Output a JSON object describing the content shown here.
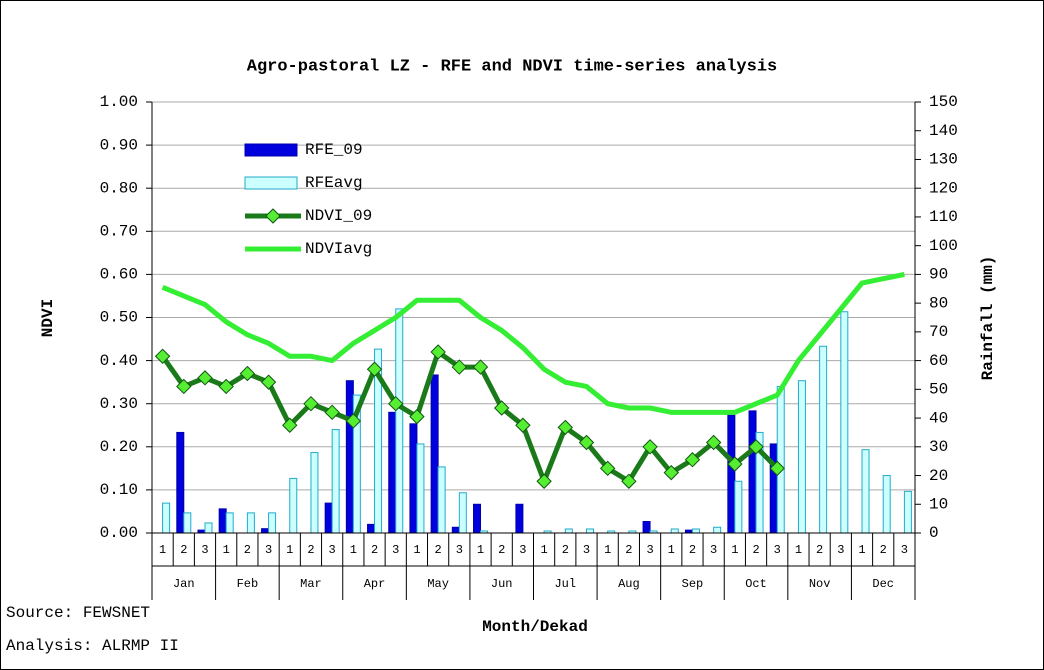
{
  "chart_data": {
    "type": "combo",
    "title": "Agro-pastoral LZ - RFE and NDVI time-series analysis",
    "y_label": "NDVI",
    "y2_label": "Rainfall (mm)",
    "x_label": "Month/Dekad",
    "annotations": [
      "Source: FEWSNET",
      "Analysis: ALRMP II"
    ],
    "categories": [
      "1",
      "2",
      "3",
      "1",
      "2",
      "3",
      "1",
      "2",
      "3",
      "1",
      "2",
      "3",
      "1",
      "2",
      "3",
      "1",
      "2",
      "3",
      "1",
      "2",
      "3",
      "1",
      "2",
      "3",
      "1",
      "2",
      "3",
      "1",
      "2",
      "3",
      "1",
      "2",
      "3",
      "1",
      "2",
      "3"
    ],
    "months": [
      "Jan",
      "Feb",
      "Mar",
      "Apr",
      "May",
      "Jun",
      "Jul",
      "Aug",
      "Sep",
      "Oct",
      "Nov",
      "Dec"
    ],
    "ylim": [
      0,
      1
    ],
    "yticks": [
      {
        "value": 0,
        "label": "0.00"
      },
      {
        "value": 0.1,
        "label": "0.10"
      },
      {
        "value": 0.2,
        "label": "0.20"
      },
      {
        "value": 0.3,
        "label": "0.30"
      },
      {
        "value": 0.4,
        "label": "0.40"
      },
      {
        "value": 0.5,
        "label": "0.50"
      },
      {
        "value": 0.6,
        "label": "0.60"
      },
      {
        "value": 0.7,
        "label": "0.70"
      },
      {
        "value": 0.8,
        "label": "0.80"
      },
      {
        "value": 0.9,
        "label": "0.90"
      },
      {
        "value": 1,
        "label": "1.00"
      }
    ],
    "y2lim": [
      0,
      150
    ],
    "y2ticks": [
      0,
      10,
      20,
      30,
      40,
      50,
      60,
      70,
      80,
      90,
      100,
      110,
      120,
      130,
      140,
      150
    ],
    "grid": true,
    "legend": "upper left",
    "series": [
      {
        "name": "RFE_09",
        "type": "bar",
        "axis": "y2",
        "color": "#0000dd",
        "values": [
          0,
          35,
          1,
          8.4,
          0,
          1.5,
          0,
          0,
          10.4,
          53,
          3,
          42,
          38,
          55,
          2,
          10,
          0,
          10,
          0,
          0,
          0,
          0,
          0,
          4,
          0,
          1,
          0,
          41,
          42.5,
          31,
          0,
          0,
          0,
          0,
          0,
          0
        ]
      },
      {
        "name": "RFEavg",
        "type": "bar",
        "axis": "y2",
        "color": "#ccffff",
        "values": [
          10.4,
          7,
          3.5,
          7,
          7,
          7,
          19,
          28,
          36,
          48,
          64,
          78,
          31,
          23,
          14,
          0.7,
          0,
          0,
          0.7,
          1.4,
          1.4,
          0.7,
          0.7,
          0.7,
          1.4,
          1.4,
          2,
          18,
          35,
          51,
          53,
          65,
          77,
          29,
          20,
          14.5
        ]
      },
      {
        "name": "NDVI_09",
        "type": "line",
        "color": "#1a7a1a",
        "values": [
          0.41,
          0.34,
          0.36,
          0.34,
          0.37,
          0.35,
          0.25,
          0.3,
          0.28,
          0.26,
          0.38,
          0.3,
          0.27,
          0.42,
          0.385,
          0.385,
          0.29,
          0.25,
          0.12,
          0.245,
          0.21,
          0.15,
          0.12,
          0.2,
          0.14,
          0.17,
          0.21,
          0.16,
          0.2,
          0.15,
          null,
          null,
          null,
          null,
          null,
          null
        ]
      },
      {
        "name": "NDVIavg",
        "type": "line",
        "color": "#33ee33",
        "values": [
          0.57,
          0.55,
          0.53,
          0.49,
          0.46,
          0.44,
          0.41,
          0.41,
          0.4,
          0.44,
          0.47,
          0.5,
          0.54,
          0.54,
          0.54,
          0.5,
          0.47,
          0.43,
          0.38,
          0.35,
          0.34,
          0.3,
          0.29,
          0.29,
          0.28,
          0.28,
          0.28,
          0.28,
          0.3,
          0.32,
          0.4,
          0.46,
          0.52,
          0.58,
          0.59,
          0.6
        ]
      }
    ]
  }
}
